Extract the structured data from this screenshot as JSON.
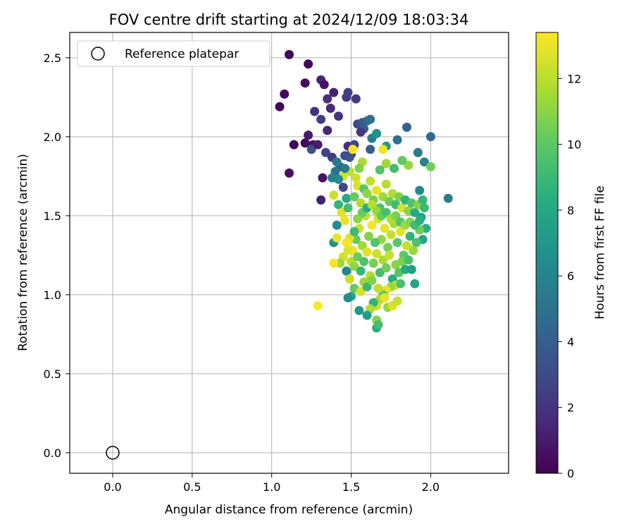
{
  "chart_data": {
    "type": "scatter",
    "title": "FOV centre drift starting at 2024/12/09 18:03:34",
    "xlabel": "Angular distance from reference (arcmin)",
    "ylabel": "Rotation from reference (arcmin)",
    "xlim": [
      -0.27,
      2.49
    ],
    "ylim": [
      -0.13,
      2.66
    ],
    "xticks": [
      0.0,
      0.5,
      1.0,
      1.5,
      2.0
    ],
    "xtick_labels": [
      "0.0",
      "0.5",
      "1.0",
      "1.5",
      "2.0"
    ],
    "yticks": [
      0.0,
      0.5,
      1.0,
      1.5,
      2.0,
      2.5
    ],
    "ytick_labels": [
      "0.0",
      "0.5",
      "1.0",
      "1.5",
      "2.0",
      "2.5"
    ],
    "grid": true,
    "legend": {
      "position": "top-left",
      "entries": [
        "Reference platepar"
      ]
    },
    "colorbar": {
      "label": "Hours from first FF file",
      "range": [
        0,
        13.4
      ],
      "ticks": [
        0,
        2,
        4,
        6,
        8,
        10,
        12
      ],
      "tick_labels": [
        "0",
        "2",
        "4",
        "6",
        "8",
        "10",
        "12"
      ],
      "colormap": "viridis"
    },
    "reference_point": {
      "x": 0.0,
      "y": 0.0
    },
    "series": [
      {
        "marker": "filled-circle",
        "note_encoding": "points are [x, y, hours]",
        "points": [
          [
            1.11,
            2.52,
            0.1
          ],
          [
            1.23,
            2.46,
            0.2
          ],
          [
            1.05,
            2.19,
            0.1
          ],
          [
            1.08,
            2.27,
            0.3
          ],
          [
            1.21,
            2.34,
            0.4
          ],
          [
            1.14,
            1.95,
            0.2
          ],
          [
            1.21,
            1.96,
            0.3
          ],
          [
            1.11,
            1.77,
            0.5
          ],
          [
            1.26,
            1.95,
            0.6
          ],
          [
            1.32,
            1.74,
            0.8
          ],
          [
            1.31,
            1.6,
            1.2
          ],
          [
            1.31,
            2.36,
            1.5
          ],
          [
            1.35,
            2.24,
            1.8
          ],
          [
            1.39,
            2.28,
            1.2
          ],
          [
            1.33,
            2.33,
            0.7
          ],
          [
            1.37,
            2.18,
            1.6
          ],
          [
            1.42,
            2.13,
            2.0
          ],
          [
            1.47,
            2.25,
            2.3
          ],
          [
            1.53,
            2.24,
            2.2
          ],
          [
            1.48,
            2.28,
            2.5
          ],
          [
            1.27,
            2.16,
            1.9
          ],
          [
            1.31,
            2.11,
            2.6
          ],
          [
            1.35,
            2.04,
            1.4
          ],
          [
            1.23,
            2.01,
            1.0
          ],
          [
            1.25,
            1.92,
            3.3
          ],
          [
            1.29,
            1.95,
            1.1
          ],
          [
            1.34,
            1.9,
            2.8
          ],
          [
            1.38,
            1.87,
            2.5
          ],
          [
            1.43,
            1.81,
            3.9
          ],
          [
            1.41,
            1.84,
            5.5
          ],
          [
            1.46,
            1.88,
            3.2
          ],
          [
            1.45,
            1.68,
            3.0
          ],
          [
            1.4,
            1.78,
            5.2
          ],
          [
            1.39,
            1.63,
            12.3
          ],
          [
            1.38,
            1.74,
            6.0
          ],
          [
            1.45,
            1.75,
            12.5
          ],
          [
            1.48,
            1.94,
            1.8
          ],
          [
            1.5,
            1.89,
            2.2
          ],
          [
            1.52,
            1.95,
            2.9
          ],
          [
            1.49,
            1.87,
            3.5
          ],
          [
            1.54,
            2.08,
            3.1
          ],
          [
            1.57,
            2.09,
            3.6
          ],
          [
            1.58,
            2.05,
            4.1
          ],
          [
            1.6,
            2.1,
            4.5
          ],
          [
            1.62,
            2.11,
            5.1
          ],
          [
            1.63,
            1.99,
            5.6
          ],
          [
            1.56,
            2.03,
            2.2
          ],
          [
            1.62,
            1.92,
            4.0
          ],
          [
            1.66,
            2.02,
            6.8
          ],
          [
            1.72,
            1.94,
            7.2
          ],
          [
            1.79,
            1.98,
            4.8
          ],
          [
            1.85,
            2.06,
            4.2
          ],
          [
            1.92,
            1.9,
            5.5
          ],
          [
            2.0,
            2.0,
            4.7
          ],
          [
            1.96,
            1.84,
            5.9
          ],
          [
            2.11,
            1.61,
            5.6
          ],
          [
            1.93,
            1.66,
            6.3
          ],
          [
            2.0,
            1.81,
            10.5
          ],
          [
            1.86,
            1.82,
            11.2
          ],
          [
            1.82,
            1.85,
            10.1
          ],
          [
            1.77,
            1.8,
            9.2
          ],
          [
            1.72,
            1.83,
            11.5
          ],
          [
            1.68,
            1.79,
            9.7
          ],
          [
            1.7,
            1.92,
            13.1
          ],
          [
            1.57,
            1.84,
            11.7
          ],
          [
            1.53,
            1.74,
            12.4
          ],
          [
            1.55,
            1.8,
            10.8
          ],
          [
            1.49,
            1.78,
            12.1
          ],
          [
            1.51,
            1.92,
            13.3
          ],
          [
            1.46,
            1.8,
            5.4
          ],
          [
            1.42,
            1.73,
            6.2
          ],
          [
            1.41,
            1.44,
            6.5
          ],
          [
            1.39,
            1.33,
            7.0
          ],
          [
            1.42,
            1.57,
            8.8
          ],
          [
            1.44,
            1.52,
            12.8
          ],
          [
            1.46,
            1.47,
            13.0
          ],
          [
            1.48,
            1.55,
            9.3
          ],
          [
            1.47,
            1.61,
            8.1
          ],
          [
            1.52,
            1.62,
            10.2
          ],
          [
            1.54,
            1.69,
            12.7
          ],
          [
            1.56,
            1.58,
            11.9
          ],
          [
            1.58,
            1.67,
            9.8
          ],
          [
            1.6,
            1.64,
            11.1
          ],
          [
            1.62,
            1.72,
            12.2
          ],
          [
            1.64,
            1.6,
            10.6
          ],
          [
            1.66,
            1.66,
            12.9
          ],
          [
            1.68,
            1.55,
            9.4
          ],
          [
            1.7,
            1.62,
            11.4
          ],
          [
            1.72,
            1.7,
            12.0
          ],
          [
            1.74,
            1.59,
            10.3
          ],
          [
            1.76,
            1.64,
            11.8
          ],
          [
            1.78,
            1.57,
            9.1
          ],
          [
            1.8,
            1.62,
            10.7
          ],
          [
            1.82,
            1.55,
            12.6
          ],
          [
            1.84,
            1.6,
            8.6
          ],
          [
            1.86,
            1.53,
            11.0
          ],
          [
            1.88,
            1.58,
            9.6
          ],
          [
            1.9,
            1.52,
            8.2
          ],
          [
            1.92,
            1.57,
            10.9
          ],
          [
            1.94,
            1.49,
            7.6
          ],
          [
            1.96,
            1.55,
            9.0
          ],
          [
            1.97,
            1.42,
            8.3
          ],
          [
            1.95,
            1.35,
            7.9
          ],
          [
            1.93,
            1.41,
            10.4
          ],
          [
            1.91,
            1.33,
            9.5
          ],
          [
            1.89,
            1.28,
            11.3
          ],
          [
            1.87,
            1.37,
            8.7
          ],
          [
            1.85,
            1.31,
            12.3
          ],
          [
            1.83,
            1.25,
            10.0
          ],
          [
            1.81,
            1.4,
            12.8
          ],
          [
            1.79,
            1.33,
            9.9
          ],
          [
            1.77,
            1.45,
            11.6
          ],
          [
            1.75,
            1.38,
            12.2
          ],
          [
            1.73,
            1.3,
            10.5
          ],
          [
            1.71,
            1.42,
            12.9
          ],
          [
            1.69,
            1.35,
            11.2
          ],
          [
            1.67,
            1.48,
            12.6
          ],
          [
            1.65,
            1.33,
            9.7
          ],
          [
            1.63,
            1.44,
            13.2
          ],
          [
            1.61,
            1.37,
            10.8
          ],
          [
            1.59,
            1.5,
            12.1
          ],
          [
            1.57,
            1.31,
            11.5
          ],
          [
            1.55,
            1.42,
            12.4
          ],
          [
            1.53,
            1.35,
            10.1
          ],
          [
            1.51,
            1.28,
            13.1
          ],
          [
            1.49,
            1.36,
            12.7
          ],
          [
            1.47,
            1.33,
            13.3
          ],
          [
            1.45,
            1.24,
            12.5
          ],
          [
            1.43,
            1.2,
            11.4
          ],
          [
            1.39,
            1.2,
            13.3
          ],
          [
            1.41,
            1.36,
            12.9
          ],
          [
            1.5,
            1.21,
            12.0
          ],
          [
            1.52,
            1.18,
            11.1
          ],
          [
            1.54,
            1.24,
            10.3
          ],
          [
            1.56,
            1.15,
            8.9
          ],
          [
            1.58,
            1.21,
            9.6
          ],
          [
            1.6,
            1.27,
            12.8
          ],
          [
            1.62,
            1.12,
            11.9
          ],
          [
            1.64,
            1.2,
            10.6
          ],
          [
            1.66,
            1.26,
            12.4
          ],
          [
            1.68,
            1.14,
            9.2
          ],
          [
            1.7,
            1.22,
            11.7
          ],
          [
            1.72,
            1.17,
            10.4
          ],
          [
            1.74,
            1.25,
            12.2
          ],
          [
            1.76,
            1.1,
            8.4
          ],
          [
            1.78,
            1.19,
            11.0
          ],
          [
            1.8,
            1.14,
            9.8
          ],
          [
            1.82,
            1.21,
            10.7
          ],
          [
            1.84,
            1.16,
            8.1
          ],
          [
            1.86,
            1.22,
            9.4
          ],
          [
            1.88,
            1.16,
            7.5
          ],
          [
            1.9,
            1.07,
            7.8
          ],
          [
            1.78,
            1.06,
            12.6
          ],
          [
            1.75,
            1.05,
            11.3
          ],
          [
            1.72,
            1.03,
            12.9
          ],
          [
            1.7,
            1.0,
            10.0
          ],
          [
            1.68,
            0.97,
            11.6
          ],
          [
            1.66,
            0.93,
            12.3
          ],
          [
            1.64,
            0.95,
            8.7
          ],
          [
            1.62,
            0.91,
            11.8
          ],
          [
            1.6,
            0.87,
            7.4
          ],
          [
            1.66,
            0.84,
            10.9
          ],
          [
            1.66,
            0.79,
            8.0
          ],
          [
            1.67,
            0.81,
            9.3
          ],
          [
            1.55,
            0.9,
            7.2
          ],
          [
            1.5,
            0.99,
            7.9
          ],
          [
            1.48,
            0.98,
            6.6
          ],
          [
            1.52,
            1.04,
            10.2
          ],
          [
            1.56,
            1.02,
            12.5
          ],
          [
            1.58,
            1.08,
            11.4
          ],
          [
            1.6,
            1.05,
            9.0
          ],
          [
            1.63,
            1.09,
            10.8
          ],
          [
            1.67,
            1.04,
            12.1
          ],
          [
            1.71,
            0.98,
            13.0
          ],
          [
            1.73,
            0.92,
            11.2
          ],
          [
            1.76,
            0.93,
            12.7
          ],
          [
            1.79,
            0.96,
            12.3
          ],
          [
            1.81,
            1.07,
            9.5
          ],
          [
            1.29,
            0.93,
            13.4
          ],
          [
            1.47,
            1.15,
            6.1
          ],
          [
            1.49,
            1.1,
            12.4
          ],
          [
            1.48,
            1.28,
            12.8
          ],
          [
            1.52,
            1.4,
            9.1
          ],
          [
            1.54,
            1.48,
            11.0
          ],
          [
            1.57,
            1.52,
            10.2
          ],
          [
            1.6,
            1.55,
            8.3
          ],
          [
            1.63,
            1.57,
            12.0
          ],
          [
            1.66,
            1.53,
            11.3
          ],
          [
            1.69,
            1.5,
            10.1
          ],
          [
            1.72,
            1.52,
            9.4
          ],
          [
            1.75,
            1.48,
            11.9
          ],
          [
            1.78,
            1.5,
            10.6
          ],
          [
            1.81,
            1.46,
            9.7
          ],
          [
            1.84,
            1.44,
            11.5
          ],
          [
            1.87,
            1.46,
            10.8
          ],
          [
            1.9,
            1.44,
            9.2
          ],
          [
            1.93,
            1.47,
            8.5
          ],
          [
            1.95,
            1.6,
            8.9
          ]
        ]
      }
    ]
  }
}
